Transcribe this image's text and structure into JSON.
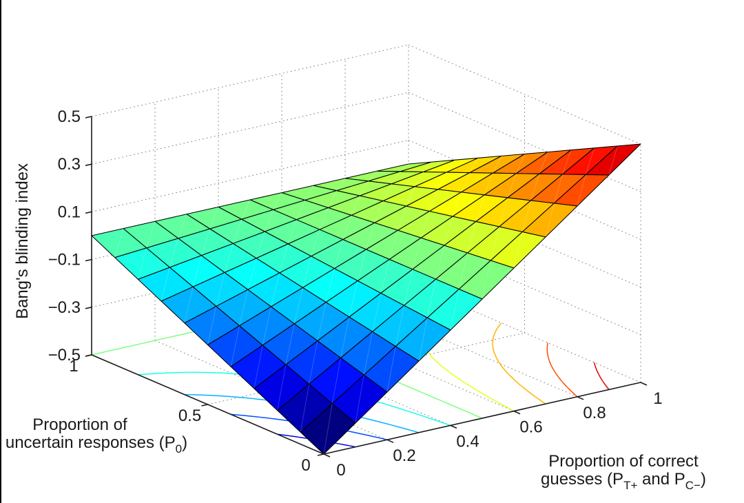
{
  "chart_data": {
    "type": "surface",
    "title": "",
    "background": "#ffffff",
    "view": "3d-perspective (MATLAB-style)",
    "grid": {
      "style": "dotted",
      "color": "#6f6f6f",
      "on": true
    },
    "z_axis": {
      "label": "Bang's blinding index",
      "ticks": [
        "0.5",
        "0.3",
        "0.1",
        "−0.1",
        "−0.3",
        "−0.5"
      ],
      "tick_values": [
        0.5,
        0.3,
        0.1,
        -0.1,
        -0.3,
        -0.5
      ],
      "range": [
        -0.5,
        0.5
      ]
    },
    "x_axis": {
      "label_lines": [
        [
          {
            "t": "Proportion of correct"
          }
        ],
        [
          {
            "t": "guesses (P"
          },
          {
            "t": "T+",
            "sub": true
          },
          {
            "t": " and P"
          },
          {
            "t": "C−",
            "sub": true
          },
          {
            "t": ")"
          }
        ]
      ],
      "ticks": [
        "0",
        "0.2",
        "0.4",
        "0.6",
        "0.8",
        "1"
      ],
      "tick_values": [
        0,
        0.2,
        0.4,
        0.6,
        0.8,
        1
      ],
      "range": [
        0,
        1
      ]
    },
    "y_axis": {
      "label_lines": [
        [
          {
            "t": "Proportion of"
          }
        ],
        [
          {
            "t": "uncertain responses (P"
          },
          {
            "t": "0",
            "sub": true
          },
          {
            "t": ")"
          }
        ]
      ],
      "ticks": [
        "0",
        "0.5",
        "1"
      ],
      "tick_values": [
        0,
        0.5,
        1
      ],
      "range": [
        0,
        1
      ]
    },
    "surface": {
      "x_values": [
        0,
        0.1,
        0.2,
        0.3,
        0.4,
        0.5,
        0.6,
        0.7,
        0.8,
        0.9,
        1
      ],
      "y_values": [
        0,
        0.1,
        0.2,
        0.3,
        0.4,
        0.5,
        0.6,
        0.7,
        0.8,
        0.9,
        1
      ],
      "z_matrix": [
        [
          -0.5,
          -0.4,
          -0.3,
          -0.2,
          -0.1,
          0,
          0.1,
          0.2,
          0.3,
          0.4,
          0.5
        ],
        [
          -0.45,
          -0.36,
          -0.27,
          -0.18,
          -0.09,
          0,
          0.09,
          0.18,
          0.27,
          0.36,
          0.45
        ],
        [
          -0.4,
          -0.32,
          -0.24,
          -0.16,
          -0.08,
          0,
          0.08,
          0.16,
          0.24,
          0.32,
          0.4
        ],
        [
          -0.35,
          -0.28,
          -0.21,
          -0.14,
          -0.07,
          0,
          0.07,
          0.14,
          0.21,
          0.28,
          0.35
        ],
        [
          -0.3,
          -0.24,
          -0.18,
          -0.12,
          -0.06,
          0,
          0.06,
          0.12,
          0.18,
          0.24,
          0.3
        ],
        [
          -0.25,
          -0.2,
          -0.15,
          -0.1,
          -0.05,
          0,
          0.05,
          0.1,
          0.15,
          0.2,
          0.25
        ],
        [
          -0.2,
          -0.16,
          -0.12,
          -0.08,
          -0.04,
          0,
          0.04,
          0.08,
          0.12,
          0.16,
          0.2
        ],
        [
          -0.15,
          -0.12,
          -0.09,
          -0.06,
          -0.03,
          0,
          0.03,
          0.06,
          0.09,
          0.12,
          0.15
        ],
        [
          -0.1,
          -0.08,
          -0.06,
          -0.04,
          -0.02,
          0,
          0.02,
          0.04,
          0.06,
          0.08,
          0.1
        ],
        [
          -0.05,
          -0.04,
          -0.03,
          -0.02,
          -0.01,
          0,
          0.01,
          0.02,
          0.03,
          0.04,
          0.05
        ],
        [
          0,
          0,
          0,
          0,
          0,
          0,
          0,
          0,
          0,
          0,
          0
        ]
      ],
      "colormap": "jet",
      "color_range": [
        -0.5,
        0.5
      ],
      "mesh_line_color": "#000000"
    },
    "floor_contours": {
      "plane": "z = -0.5",
      "levels": [
        -0.4,
        -0.3,
        -0.2,
        -0.1,
        0,
        0.1,
        0.2,
        0.3,
        0.4
      ]
    }
  }
}
